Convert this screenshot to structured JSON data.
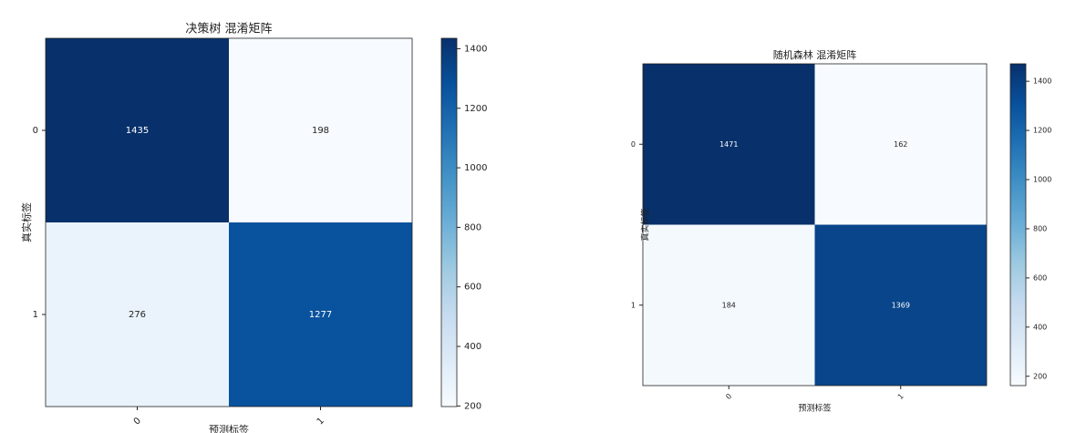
{
  "chart_data": [
    {
      "type": "heatmap",
      "title": "决策树 混淆矩阵",
      "x_label": "预测标签",
      "y_label": "真实标签",
      "x_categories": [
        "0",
        "1"
      ],
      "y_categories": [
        "0",
        "1"
      ],
      "values": [
        [
          1435,
          198
        ],
        [
          276,
          1277
        ]
      ],
      "colormap": "Blues",
      "clim": [
        198,
        1435
      ],
      "cticks": [
        200,
        400,
        600,
        800,
        1000,
        1200,
        1400
      ]
    },
    {
      "type": "heatmap",
      "title": "随机森林 混淆矩阵",
      "x_label": "预测标签",
      "y_label": "真实标签",
      "x_categories": [
        "0",
        "1"
      ],
      "y_categories": [
        "0",
        "1"
      ],
      "values": [
        [
          1471,
          162
        ],
        [
          184,
          1369
        ]
      ],
      "colormap": "Blues",
      "clim": [
        162,
        1471
      ],
      "cticks": [
        200,
        400,
        600,
        800,
        1000,
        1200,
        1400
      ]
    }
  ]
}
